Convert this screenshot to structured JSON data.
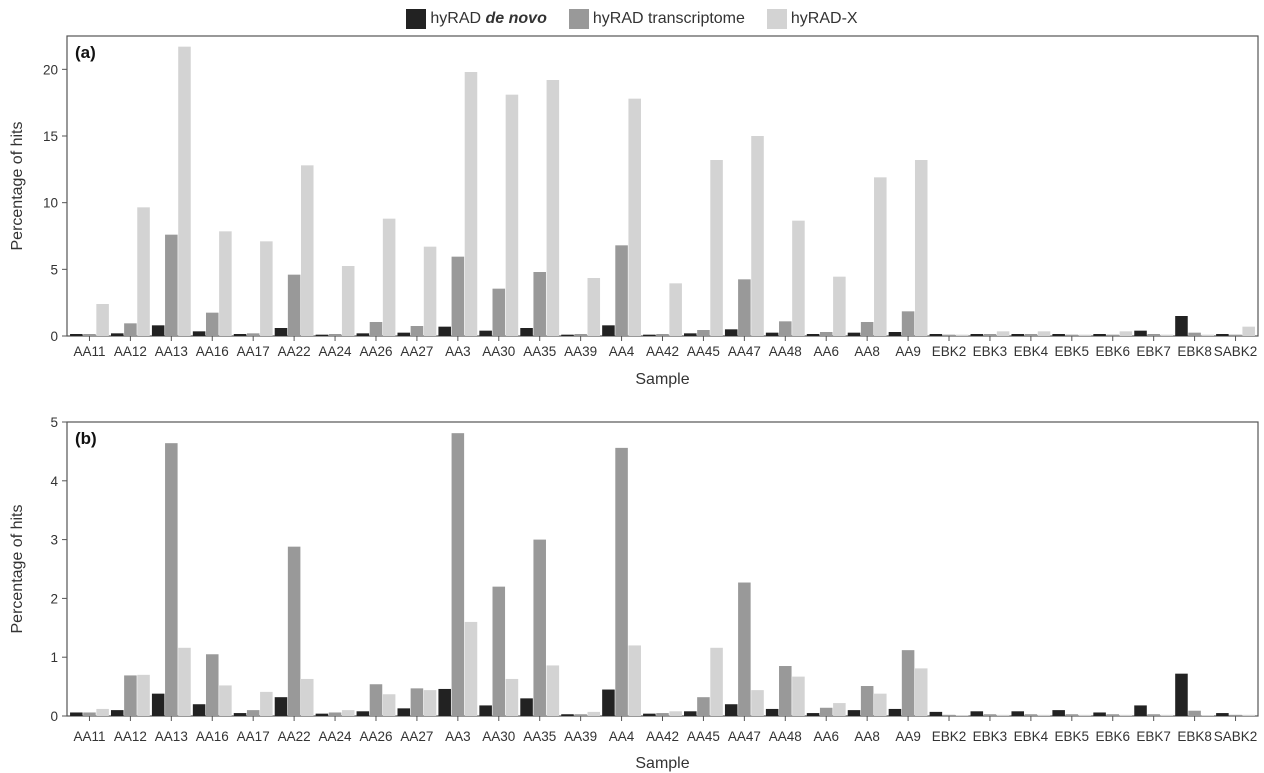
{
  "legend": {
    "items": [
      {
        "pre": "hyRAD ",
        "em": "de novo",
        "color": "#222222"
      },
      {
        "pre": "hyRAD transcriptome",
        "em": "",
        "color": "#999999"
      },
      {
        "pre": "hyRAD-X",
        "em": "",
        "color": "#d3d3d3"
      }
    ]
  },
  "chart_data": [
    {
      "type": "bar",
      "panel_label": "(a)",
      "xlabel": "Sample",
      "ylabel": "Percentage of hits",
      "ylim": [
        0,
        22.5
      ],
      "yticks": [
        0,
        5,
        10,
        15,
        20
      ],
      "categories": [
        "AA11",
        "AA12",
        "AA13",
        "AA16",
        "AA17",
        "AA22",
        "AA24",
        "AA26",
        "AA27",
        "AA3",
        "AA30",
        "AA35",
        "AA39",
        "AA4",
        "AA42",
        "AA45",
        "AA47",
        "AA48",
        "AA6",
        "AA8",
        "AA9",
        "EBK2",
        "EBK3",
        "EBK4",
        "EBK5",
        "EBK6",
        "EBK7",
        "EBK8",
        "SABK2"
      ],
      "series": [
        {
          "name": "hyRAD de novo",
          "color": "#222222",
          "values": [
            0.15,
            0.2,
            0.8,
            0.35,
            0.15,
            0.6,
            0.1,
            0.2,
            0.25,
            0.7,
            0.4,
            0.6,
            0.1,
            0.8,
            0.1,
            0.2,
            0.5,
            0.25,
            0.15,
            0.25,
            0.3,
            0.15,
            0.15,
            0.15,
            0.15,
            0.15,
            0.4,
            1.5,
            0.15
          ]
        },
        {
          "name": "hyRAD transcriptome",
          "color": "#999999",
          "values": [
            0.15,
            0.95,
            7.6,
            1.75,
            0.2,
            4.6,
            0.15,
            1.05,
            0.75,
            5.95,
            3.55,
            4.8,
            0.15,
            6.8,
            0.15,
            0.45,
            4.25,
            1.1,
            0.3,
            1.05,
            1.85,
            0.1,
            0.15,
            0.15,
            0.1,
            0.1,
            0.15,
            0.25,
            0.1
          ]
        },
        {
          "name": "hyRAD-X",
          "color": "#d3d3d3",
          "values": [
            2.4,
            9.65,
            21.7,
            7.85,
            7.1,
            12.8,
            5.25,
            8.8,
            6.7,
            19.8,
            18.1,
            19.2,
            4.35,
            17.8,
            3.95,
            13.2,
            15.0,
            8.65,
            4.45,
            11.9,
            13.2,
            0.1,
            0.35,
            0.35,
            0.1,
            0.35,
            0.1,
            0.1,
            0.7
          ]
        }
      ]
    },
    {
      "type": "bar",
      "panel_label": "(b)",
      "xlabel": "Sample",
      "ylabel": "Percentage of hits",
      "ylim": [
        0,
        5
      ],
      "yticks": [
        0,
        1,
        2,
        3,
        4,
        5
      ],
      "categories": [
        "AA11",
        "AA12",
        "AA13",
        "AA16",
        "AA17",
        "AA22",
        "AA24",
        "AA26",
        "AA27",
        "AA3",
        "AA30",
        "AA35",
        "AA39",
        "AA4",
        "AA42",
        "AA45",
        "AA47",
        "AA48",
        "AA6",
        "AA8",
        "AA9",
        "EBK2",
        "EBK3",
        "EBK4",
        "EBK5",
        "EBK6",
        "EBK7",
        "EBK8",
        "SABK2"
      ],
      "series": [
        {
          "name": "hyRAD de novo",
          "color": "#222222",
          "values": [
            0.06,
            0.1,
            0.38,
            0.2,
            0.05,
            0.32,
            0.04,
            0.08,
            0.13,
            0.46,
            0.18,
            0.3,
            0.03,
            0.45,
            0.04,
            0.08,
            0.2,
            0.12,
            0.05,
            0.1,
            0.12,
            0.07,
            0.08,
            0.08,
            0.1,
            0.06,
            0.18,
            0.72,
            0.05
          ]
        },
        {
          "name": "hyRAD transcriptome",
          "color": "#999999",
          "values": [
            0.06,
            0.69,
            4.64,
            1.05,
            0.1,
            2.88,
            0.06,
            0.54,
            0.47,
            4.81,
            2.2,
            3.0,
            0.03,
            4.56,
            0.05,
            0.32,
            2.27,
            0.85,
            0.14,
            0.51,
            1.12,
            0.02,
            0.03,
            0.03,
            0.03,
            0.03,
            0.03,
            0.09,
            0.02
          ]
        },
        {
          "name": "hyRAD-X",
          "color": "#d3d3d3",
          "values": [
            0.12,
            0.7,
            1.16,
            0.52,
            0.41,
            0.63,
            0.1,
            0.37,
            0.44,
            1.6,
            0.63,
            0.86,
            0.07,
            1.2,
            0.08,
            1.16,
            0.44,
            0.67,
            0.22,
            0.38,
            0.81,
            0.01,
            0.02,
            0.02,
            0.02,
            0.02,
            0.02,
            0.01,
            0.02
          ]
        }
      ]
    }
  ]
}
